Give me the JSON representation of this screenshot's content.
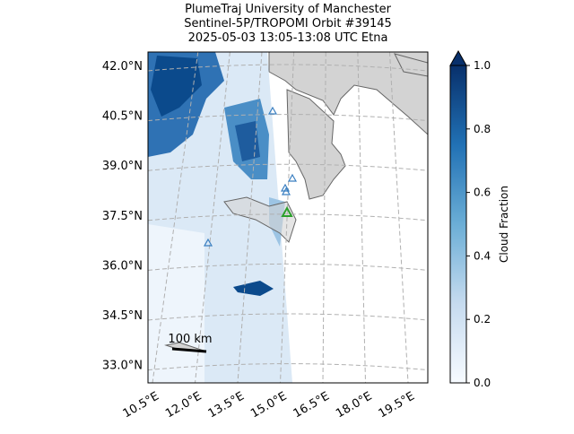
{
  "title": [
    "PlumeTraj    University of Manchester",
    "Sentinel-5P/TROPOMI Orbit #39145",
    "2025-05-03    13:05-13:08 UTC    Etna"
  ],
  "map": {
    "lat_ticks": [
      {
        "value": 42,
        "label": "42.0°N"
      },
      {
        "value": 40.5,
        "label": "40.5°N"
      },
      {
        "value": 39,
        "label": "39.0°N"
      },
      {
        "value": 37.5,
        "label": "37.5°N"
      },
      {
        "value": 36,
        "label": "36.0°N"
      },
      {
        "value": 34.5,
        "label": "34.5°N"
      },
      {
        "value": 33,
        "label": "33.0°N"
      }
    ],
    "lon_ticks": [
      {
        "value": 10.5,
        "label": "10.5°E"
      },
      {
        "value": 12,
        "label": "12.0°E"
      },
      {
        "value": 13.5,
        "label": "13.5°E"
      },
      {
        "value": 15,
        "label": "15.0°E"
      },
      {
        "value": 16.5,
        "label": "16.5°E"
      },
      {
        "value": 18,
        "label": "18.0°E"
      },
      {
        "value": 19.5,
        "label": "19.5°E"
      }
    ],
    "scale_bar": "100 km"
  },
  "colorbar": {
    "label": "Cloud Fraction",
    "range": [
      0,
      1
    ],
    "ticks": [
      {
        "value": 0,
        "label": "0.0"
      },
      {
        "value": 0.2,
        "label": "0.2"
      },
      {
        "value": 0.4,
        "label": "0.4"
      },
      {
        "value": 0.6,
        "label": "0.6"
      },
      {
        "value": 0.8,
        "label": "0.8"
      },
      {
        "value": 1,
        "label": "1.0"
      }
    ],
    "colors": [
      "#f7fbff",
      "#c6dbef",
      "#6baed6",
      "#2171b5",
      "#08306b"
    ]
  }
}
